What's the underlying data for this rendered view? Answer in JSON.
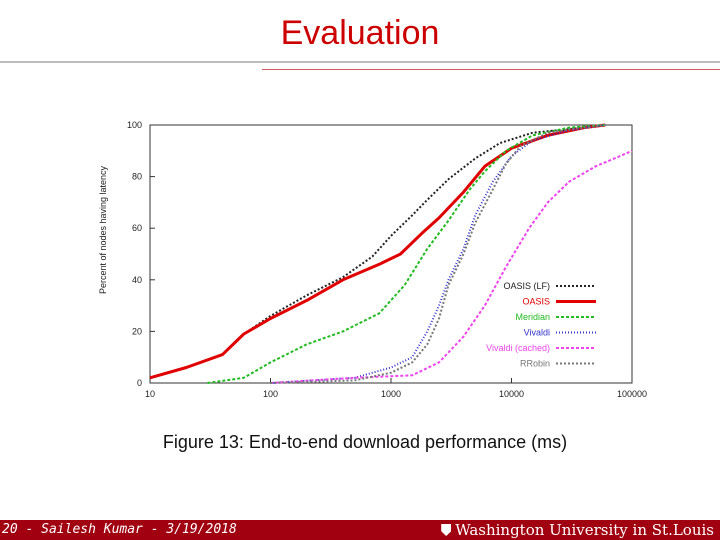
{
  "slide": {
    "title": "Evaluation",
    "footer_left": "20 - Sailesh Kumar - 3/19/2018",
    "footer_right": "Washington University in St.Louis",
    "colors": {
      "title": "#cc0000",
      "footer_bg": "#a0000f"
    }
  },
  "chart_data": {
    "type": "line",
    "title": "",
    "caption": "Figure 13: End-to-end download performance (ms)",
    "xlabel": "",
    "ylabel": "Percent of nodes having latency",
    "xscale": "log",
    "xlim": [
      10,
      100000
    ],
    "ylim": [
      0,
      100
    ],
    "x_ticks": [
      {
        "value": 10,
        "label": "10"
      },
      {
        "value": 100,
        "label": "100"
      },
      {
        "value": 1000,
        "label": "1000"
      },
      {
        "value": 10000,
        "label": "10000"
      },
      {
        "value": 100000,
        "label": "100000"
      }
    ],
    "y_ticks": [
      {
        "value": 0,
        "label": "0"
      },
      {
        "value": 20,
        "label": "20"
      },
      {
        "value": 40,
        "label": "40"
      },
      {
        "value": 60,
        "label": "60"
      },
      {
        "value": 80,
        "label": "80"
      },
      {
        "value": 100,
        "label": "100"
      }
    ],
    "grid": false,
    "legend_position": "right",
    "series": [
      {
        "name": "OASIS (LF)",
        "color": "#222222",
        "dash": "2,2",
        "width": 2,
        "points": [
          [
            10,
            2
          ],
          [
            20,
            6
          ],
          [
            40,
            11
          ],
          [
            60,
            19
          ],
          [
            100,
            26
          ],
          [
            200,
            34
          ],
          [
            400,
            41
          ],
          [
            700,
            49
          ],
          [
            1000,
            57
          ],
          [
            1500,
            65
          ],
          [
            2000,
            71
          ],
          [
            3000,
            79
          ],
          [
            5000,
            87
          ],
          [
            8000,
            93
          ],
          [
            15000,
            97
          ],
          [
            40000,
            99
          ],
          [
            60000,
            100
          ]
        ]
      },
      {
        "name": "OASIS",
        "color": "#e00000",
        "dash": "",
        "width": 3,
        "points": [
          [
            10,
            2
          ],
          [
            20,
            6
          ],
          [
            40,
            11
          ],
          [
            60,
            19
          ],
          [
            100,
            25
          ],
          [
            200,
            32
          ],
          [
            400,
            40
          ],
          [
            800,
            46
          ],
          [
            1200,
            50
          ],
          [
            1800,
            58
          ],
          [
            2500,
            64
          ],
          [
            4000,
            74
          ],
          [
            6000,
            84
          ],
          [
            10000,
            91
          ],
          [
            20000,
            96
          ],
          [
            40000,
            99
          ],
          [
            60000,
            100
          ]
        ]
      },
      {
        "name": "Meridian",
        "color": "#22bb22",
        "dash": "3,2",
        "width": 2,
        "points": [
          [
            30,
            0
          ],
          [
            60,
            2
          ],
          [
            100,
            8
          ],
          [
            200,
            15
          ],
          [
            400,
            20
          ],
          [
            800,
            27
          ],
          [
            1300,
            38
          ],
          [
            2000,
            52
          ],
          [
            3000,
            63
          ],
          [
            4500,
            75
          ],
          [
            6000,
            82
          ],
          [
            9000,
            90
          ],
          [
            15000,
            96
          ],
          [
            30000,
            99
          ],
          [
            60000,
            100
          ]
        ]
      },
      {
        "name": "Vivaldi",
        "color": "#3333cc",
        "dash": "1,2",
        "width": 2,
        "points": [
          [
            100,
            0
          ],
          [
            500,
            2
          ],
          [
            1000,
            6
          ],
          [
            1500,
            10
          ],
          [
            2000,
            20
          ],
          [
            2500,
            30
          ],
          [
            3000,
            40
          ],
          [
            4000,
            52
          ],
          [
            5000,
            65
          ],
          [
            7000,
            78
          ],
          [
            10000,
            88
          ],
          [
            15000,
            94
          ],
          [
            30000,
            98
          ],
          [
            60000,
            100
          ]
        ]
      },
      {
        "name": "Vivaldi (cached)",
        "color": "#ee44ee",
        "dash": "3,2",
        "width": 2,
        "points": [
          [
            100,
            0
          ],
          [
            500,
            2
          ],
          [
            1500,
            3
          ],
          [
            2500,
            8
          ],
          [
            4000,
            18
          ],
          [
            6000,
            30
          ],
          [
            9000,
            45
          ],
          [
            14000,
            60
          ],
          [
            20000,
            70
          ],
          [
            30000,
            78
          ],
          [
            50000,
            84
          ],
          [
            80000,
            88
          ],
          [
            100000,
            90
          ]
        ]
      },
      {
        "name": "RRobin",
        "color": "#777777",
        "dash": "2,2",
        "width": 2,
        "points": [
          [
            100,
            0
          ],
          [
            500,
            1
          ],
          [
            1000,
            4
          ],
          [
            1500,
            8
          ],
          [
            2000,
            15
          ],
          [
            2500,
            25
          ],
          [
            3000,
            38
          ],
          [
            4000,
            50
          ],
          [
            5000,
            62
          ],
          [
            7000,
            75
          ],
          [
            9000,
            85
          ],
          [
            12000,
            92
          ],
          [
            20000,
            97
          ],
          [
            40000,
            99
          ],
          [
            60000,
            100
          ]
        ]
      }
    ]
  }
}
